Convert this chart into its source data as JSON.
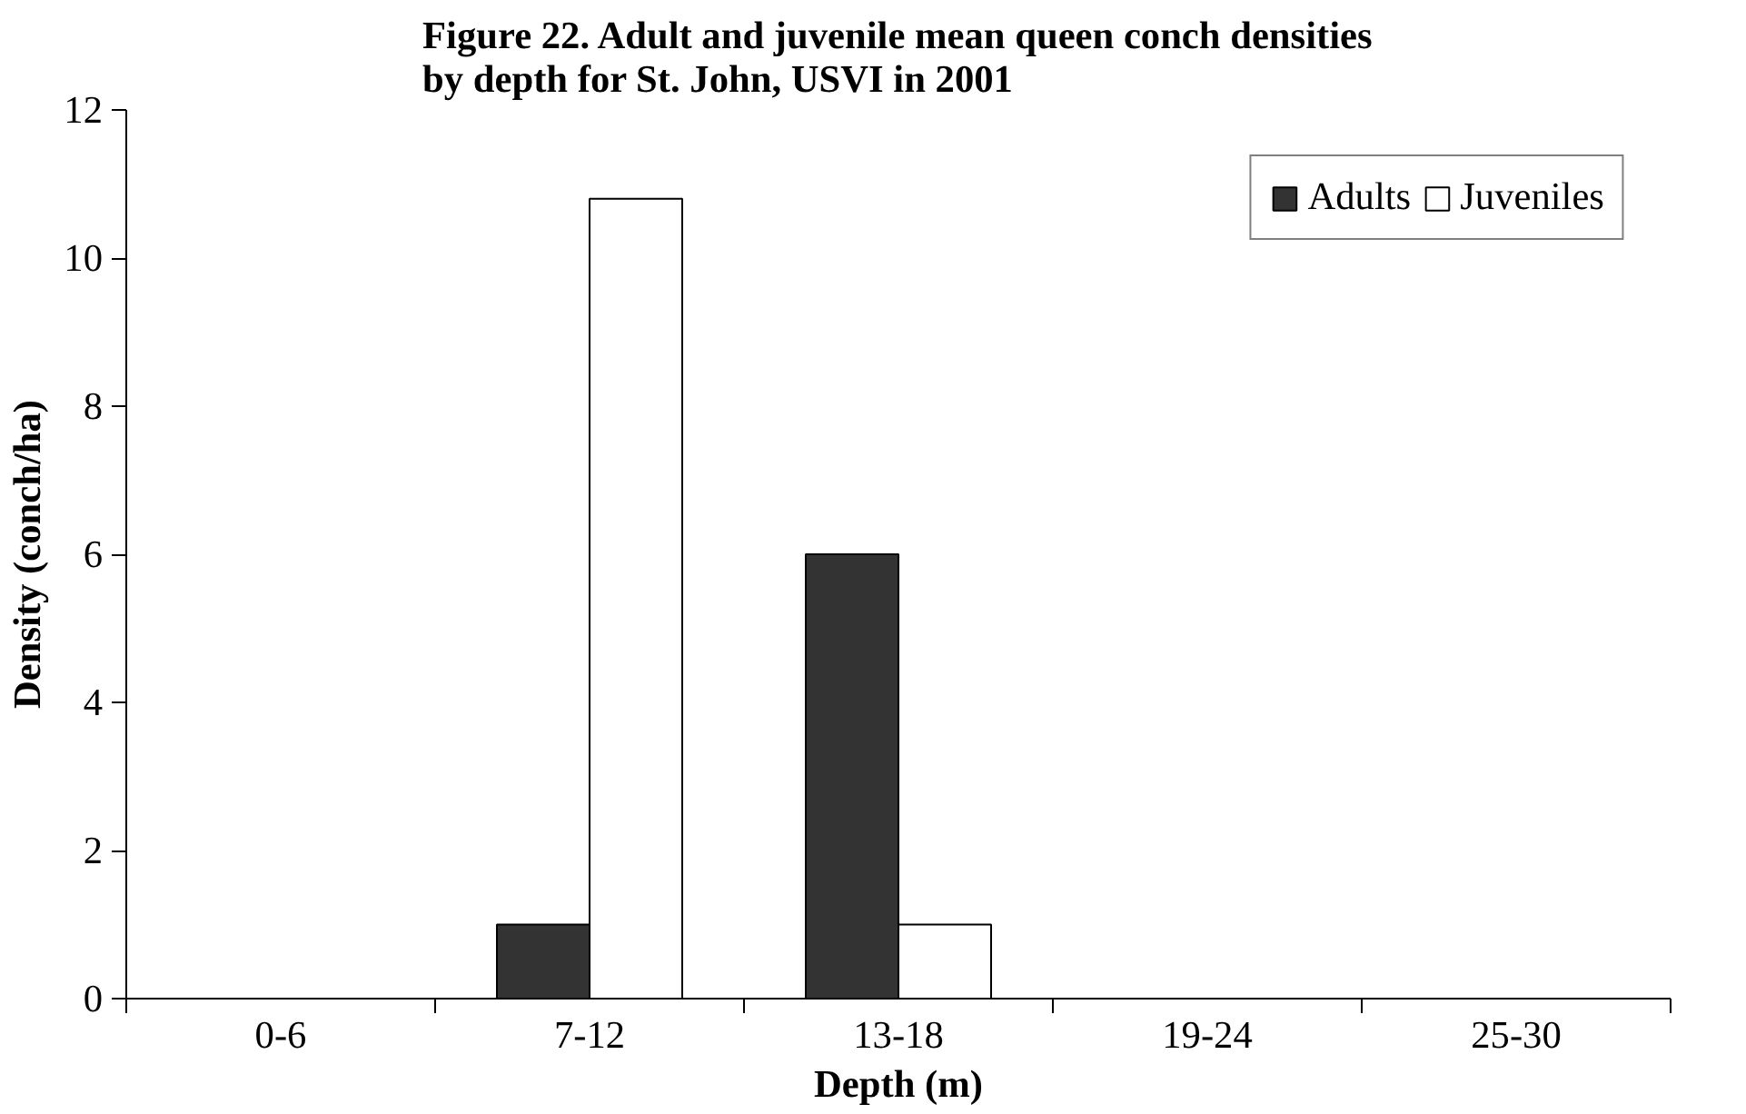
{
  "chart_data": {
    "type": "bar",
    "title": "Figure 22. Adult and juvenile mean queen conch densities\nby depth for St. John, USVI in 2001",
    "xlabel": "Depth (m)",
    "ylabel": "Density (conch/ha)",
    "categories": [
      "0-6",
      "7-12",
      "13-18",
      "19-24",
      "25-30"
    ],
    "series": [
      {
        "name": "Adults",
        "color": "#333333",
        "values": [
          0,
          1,
          6,
          0,
          0
        ]
      },
      {
        "name": "Juveniles",
        "color": "#ffffff",
        "values": [
          0,
          10.8,
          1,
          0,
          0
        ]
      }
    ],
    "ylim": [
      0,
      12
    ],
    "yticks": [
      0,
      2,
      4,
      6,
      8,
      10,
      12
    ],
    "grid": false,
    "legend": "top right"
  }
}
